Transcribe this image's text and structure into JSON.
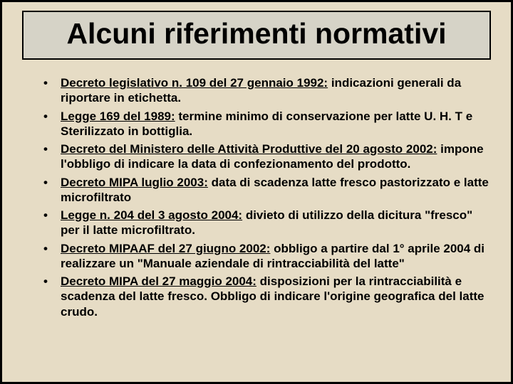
{
  "slide": {
    "background_color": "#e6dcc5",
    "border_color": "#000000",
    "title": "Alcuni riferimenti normativi",
    "title_box_bg": "#d6d3c7",
    "title_fontsize": 41,
    "body_fontsize": 17,
    "text_color": "#000000",
    "bullets": [
      {
        "lead": "Decreto legislativo n. 109 del 27 gennaio 1992:",
        "rest": " indicazioni generali da riportare in etichetta."
      },
      {
        "lead": "Legge 169 del 1989:",
        "rest": " termine minimo di conservazione per latte U. H. T e Sterilizzato in bottiglia."
      },
      {
        "lead": "Decreto del Ministero delle Attività Produttive del 20 agosto 2002:",
        "rest": " impone l'obbligo di indicare la data di confezionamento del prodotto."
      },
      {
        "lead": "Decreto MIPA luglio 2003:",
        "rest": " data di scadenza latte fresco pastorizzato e latte microfiltrato"
      },
      {
        "lead": "Legge n. 204 del 3 agosto 2004:",
        "rest": " divieto di utilizzo della dicitura \"fresco\" per il latte microfiltrato."
      },
      {
        "lead": "Decreto MIPAAF del 27 giugno 2002:",
        "rest": " obbligo a partire dal 1° aprile 2004 di realizzare un \"Manuale aziendale di rintracciabilità del latte\""
      },
      {
        "lead": "Decreto MIPA del 27 maggio 2004:",
        "rest": " disposizioni per la rintracciabilità e scadenza del latte fresco. Obbligo di indicare l'origine geografica del latte crudo."
      }
    ]
  }
}
